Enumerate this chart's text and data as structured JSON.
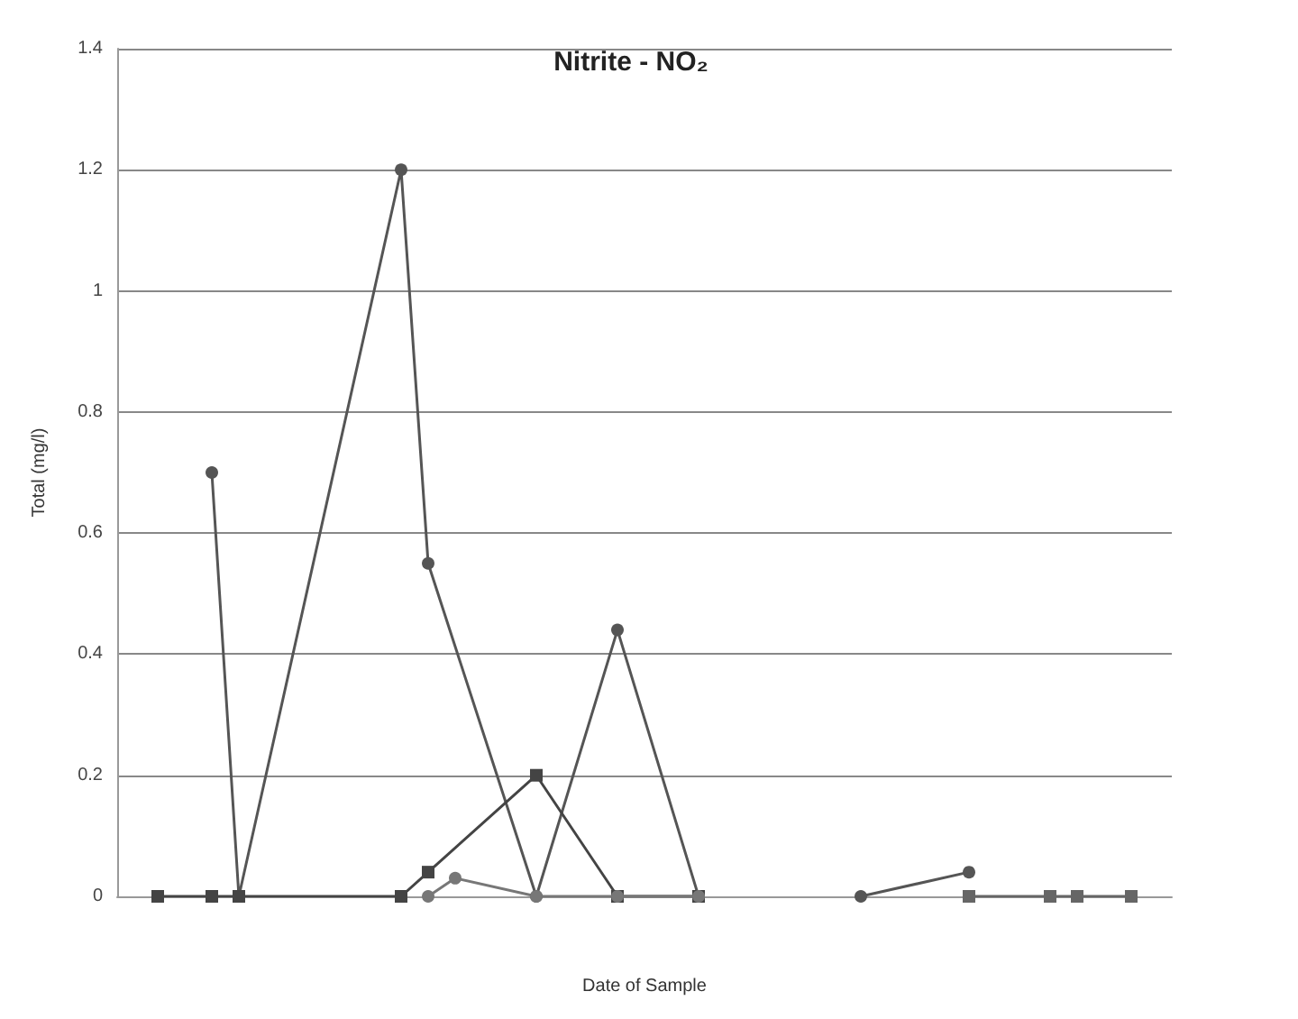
{
  "chart_data": {
    "type": "line",
    "title": "Nitrite - NO₂",
    "xlabel": "Date of Sample",
    "ylabel": "Total (mg/l)",
    "categories": [
      null,
      null,
      null,
      null,
      null,
      null,
      null,
      null,
      null,
      null,
      null,
      null,
      null,
      null,
      null,
      null,
      null,
      null,
      null,
      null,
      null,
      null,
      null,
      null,
      null,
      null,
      null,
      null,
      null,
      null,
      null,
      null,
      null,
      null,
      null,
      null,
      null,
      null,
      null
    ],
    "series": [
      {
        "color": "#555555",
        "marker": "circle",
        "values": [
          null,
          null,
          null,
          0.7,
          0,
          null,
          null,
          null,
          null,
          null,
          1.2,
          0.55,
          null,
          null,
          null,
          0,
          null,
          null,
          0.44,
          null,
          null,
          0,
          null,
          null,
          null,
          null,
          null,
          null,
          null,
          null,
          null,
          null,
          null,
          null,
          null,
          null,
          null,
          null,
          null
        ]
      },
      {
        "color": "#444444",
        "marker": "square",
        "values": [
          null,
          0,
          null,
          0,
          0,
          null,
          null,
          null,
          null,
          null,
          0,
          0.04,
          null,
          null,
          null,
          0.2,
          null,
          null,
          0,
          null,
          null,
          0,
          null,
          null,
          null,
          null,
          null,
          null,
          null,
          null,
          null,
          null,
          null,
          null,
          null,
          null,
          null,
          null,
          null
        ]
      },
      {
        "color": "#777777",
        "marker": "circle",
        "values": [
          null,
          null,
          null,
          null,
          null,
          null,
          null,
          null,
          null,
          null,
          null,
          0,
          0.03,
          null,
          null,
          0,
          null,
          null,
          0,
          null,
          null,
          0,
          null,
          null,
          null,
          null,
          null,
          null,
          null,
          null,
          null,
          null,
          null,
          null,
          null,
          null,
          null,
          null,
          null
        ]
      },
      {
        "color": "#555555",
        "marker": "circle",
        "values": [
          null,
          null,
          null,
          null,
          null,
          null,
          null,
          null,
          null,
          null,
          null,
          null,
          null,
          null,
          null,
          null,
          null,
          null,
          null,
          null,
          null,
          null,
          null,
          null,
          null,
          null,
          null,
          0,
          null,
          null,
          null,
          0.04,
          null,
          null,
          null,
          null,
          null,
          null,
          null
        ]
      },
      {
        "color": "#666666",
        "marker": "square",
        "values": [
          null,
          null,
          null,
          null,
          null,
          null,
          null,
          null,
          null,
          null,
          null,
          null,
          null,
          null,
          null,
          null,
          null,
          null,
          null,
          null,
          null,
          null,
          null,
          null,
          null,
          null,
          null,
          null,
          null,
          null,
          null,
          0,
          null,
          null,
          0,
          0,
          null,
          0,
          null
        ]
      }
    ],
    "ylim": [
      0,
      1.4
    ],
    "yticks": [
      0,
      0.2,
      0.4,
      0.6,
      0.8,
      1,
      1.2,
      1.4
    ],
    "grid": "y"
  }
}
